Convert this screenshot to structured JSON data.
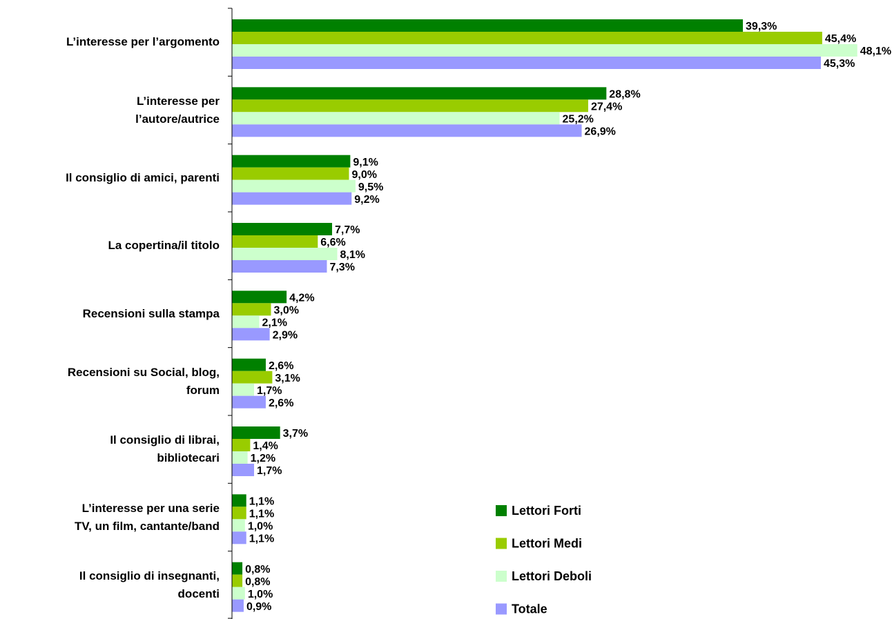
{
  "chart_data": {
    "type": "hbar",
    "categories": [
      "L’interesse per l’argomento",
      "L’interesse per\nl’autore/autrice",
      "Il consiglio di amici, parenti",
      "La copertina/il titolo",
      "Recensioni sulla stampa",
      "Recensioni su Social, blog,\nforum",
      "Il consiglio di librai,\nbibliotecari",
      "L’interesse per una serie\nTV, un film, cantante/band",
      "Il consiglio di insegnanti,\ndocenti"
    ],
    "series": [
      {
        "name": "Lettori Forti",
        "color": "#008000",
        "values": [
          39.3,
          28.8,
          9.1,
          7.7,
          4.2,
          2.6,
          3.7,
          1.1,
          0.8
        ],
        "value_labels": [
          "39,3%",
          "28,8%",
          "9,1%",
          "7,7%",
          "4,2%",
          "2,6%",
          "3,7%",
          "1,1%",
          "0,8%"
        ]
      },
      {
        "name": "Lettori Medi",
        "color": "#99cc00",
        "values": [
          45.4,
          27.4,
          9.0,
          6.6,
          3.0,
          3.1,
          1.4,
          1.1,
          0.8
        ],
        "value_labels": [
          "45,4%",
          "27,4%",
          "9,0%",
          "6,6%",
          "3,0%",
          "3,1%",
          "1,4%",
          "1,1%",
          "0,8%"
        ]
      },
      {
        "name": "Lettori Deboli",
        "color": "#ccffcc",
        "values": [
          48.1,
          25.2,
          9.5,
          8.1,
          2.1,
          1.7,
          1.2,
          1.0,
          1.0
        ],
        "value_labels": [
          "48,1%",
          "25,2%",
          "9,5%",
          "8,1%",
          "2,1%",
          "1,7%",
          "1,2%",
          "1,0%",
          "1,0%"
        ]
      },
      {
        "name": "Totale",
        "color": "#9999ff",
        "values": [
          45.3,
          26.9,
          9.2,
          7.3,
          2.9,
          2.6,
          1.7,
          1.1,
          0.9
        ],
        "value_labels": [
          "45,3%",
          "26,9%",
          "9,2%",
          "7,3%",
          "2,9%",
          "2,6%",
          "1,7%",
          "1,1%",
          "0,9%"
        ]
      }
    ],
    "xlim": [
      0,
      50
    ]
  }
}
